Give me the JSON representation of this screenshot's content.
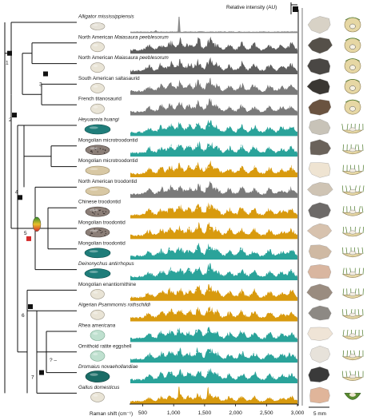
{
  "figure": {
    "intensity_label": "Relative intensity (AU)",
    "xaxis_label": "Raman shift (cm⁻¹)",
    "xaxis_ticks": [
      "500",
      "1,000",
      "1,500",
      "2,000",
      "2,500",
      "3,000"
    ],
    "scale_bar_label": "5 mm",
    "node_labels": [
      "1",
      "2",
      "3",
      "4",
      "5",
      "6",
      "7"
    ],
    "uncertain_marker": "? –"
  },
  "taxa": [
    {
      "name": "Alligator mississippiensis",
      "italic": true,
      "color": "#8a8a8a",
      "spectrum": "sharp",
      "egg": "ellipse-white",
      "nest": "buried"
    },
    {
      "name": "North American Maiasaura peeblesorum",
      "italic_part": "Maiasaura peeblesorum",
      "prefix": "North American ",
      "color": "#5f5f5f",
      "spectrum": "broad",
      "egg": "round-white",
      "nest": "buried"
    },
    {
      "name": "North American Maiasaura peeblesorum",
      "italic_part": "Maiasaura peeblesorum",
      "prefix": "North American ",
      "color": "#5f5f5f",
      "spectrum": "broad",
      "egg": "round-white",
      "nest": "buried"
    },
    {
      "name": "South American saltasaurid",
      "italic": false,
      "color": "#7a7a7a",
      "spectrum": "broad",
      "egg": "round-white",
      "nest": "buried"
    },
    {
      "name": "French titanosaurid",
      "italic": false,
      "color": "#7a7a7a",
      "spectrum": "broad",
      "egg": "round-white",
      "nest": "buried"
    },
    {
      "name": "Heyuannia huangi",
      "italic": true,
      "color": "#2aa39a",
      "spectrum": "teal",
      "egg": "blue-green",
      "nest": "open"
    },
    {
      "name": "Mongolian microtroodontid",
      "italic": false,
      "color": "#2aa39a",
      "spectrum": "teal",
      "egg": "speckled",
      "nest": "open"
    },
    {
      "name": "Mongolian microtroodontid",
      "italic": false,
      "color": "#d89a0e",
      "spectrum": "gold",
      "egg": "long-tan",
      "nest": "open"
    },
    {
      "name": "North American troodontid",
      "italic": false,
      "color": "#7a7a7a",
      "spectrum": "broad",
      "egg": "long-tan",
      "nest": "open"
    },
    {
      "name": "Chinese troodontid",
      "italic": false,
      "color": "#d89a0e",
      "spectrum": "gold",
      "egg": "speckled",
      "nest": "open"
    },
    {
      "name": "Mongolian troodontid",
      "italic": false,
      "color": "#d89a0e",
      "spectrum": "gold",
      "egg": "speckled",
      "nest": "open"
    },
    {
      "name": "Mongolian troodontid",
      "italic": false,
      "color": "#2aa39a",
      "spectrum": "teal",
      "egg": "blue-green",
      "nest": "open"
    },
    {
      "name": "Deinonychus antirrhopus",
      "italic": true,
      "color": "#2aa39a",
      "spectrum": "teal",
      "egg": "blue-green",
      "nest": "open"
    },
    {
      "name": "Mongolian enantiornithine",
      "italic": false,
      "color": "#d89a0e",
      "spectrum": "gold",
      "egg": "round-white",
      "nest": "open"
    },
    {
      "name": "Algerian Psammornis rothschildi",
      "italic_part": "Psammornis rothschildi",
      "prefix": "Algerian ",
      "color": "#d89a0e",
      "spectrum": "gold",
      "egg": "round-white",
      "nest": "open"
    },
    {
      "name": "Rhea americana",
      "italic": true,
      "color": "#2aa39a",
      "spectrum": "teal",
      "egg": "pale-green",
      "nest": "open"
    },
    {
      "name": "Ornithoid ratite eggshell",
      "italic": false,
      "color": "#2aa39a",
      "spectrum": "teal",
      "egg": "pale-green",
      "nest": "open"
    },
    {
      "name": "Dromaius novaehollandiae",
      "italic": true,
      "color": "#2aa39a",
      "spectrum": "teal",
      "egg": "dark-green",
      "nest": "open"
    },
    {
      "name": "Gallus domesticus",
      "italic": true,
      "color": "#d89a0e",
      "spectrum": "gold-sharp",
      "egg": "round-white",
      "nest": "cup"
    }
  ],
  "colors": {
    "teal": "#2aa39a",
    "gold": "#d89a0e",
    "grey": "#7a7a7a",
    "red_node": "#d42a2a"
  }
}
